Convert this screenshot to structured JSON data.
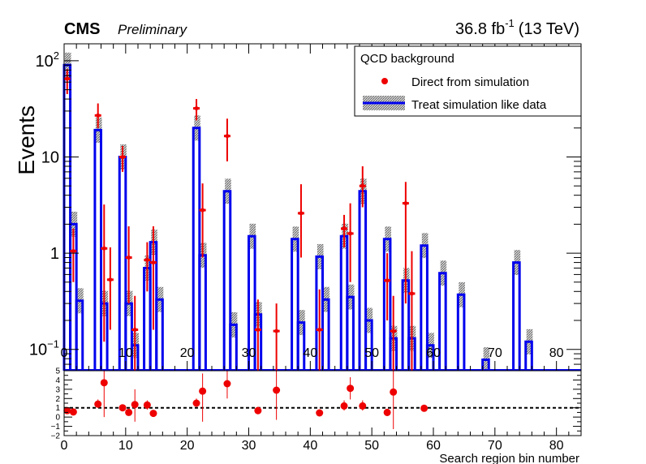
{
  "header": {
    "experiment": "CMS",
    "status": "Preliminary",
    "luminosity": "36.8 fb",
    "lumi_exponent": "-1",
    "energy": "(13 TeV)"
  },
  "legend": {
    "title": "QCD background",
    "entry_points": "Direct from simulation",
    "entry_hist": "Treat simulation like data"
  },
  "colors": {
    "histogram": "#0000ee",
    "points": "#ee0000",
    "band": "#808080"
  },
  "chart_data": [
    {
      "type": "bar",
      "panel": "main",
      "ylabel": "Events",
      "xlabel": "",
      "yscale": "log",
      "xlim": [
        0,
        84
      ],
      "ylim": [
        0.06,
        150
      ],
      "y_ticks": [
        {
          "value": 0.1,
          "label": "10",
          "exp": "−1"
        },
        {
          "value": 1,
          "label": "1",
          "exp": ""
        },
        {
          "value": 10,
          "label": "10",
          "exp": ""
        },
        {
          "value": 100,
          "label": "10",
          "exp": "2"
        }
      ],
      "x_ticks": [
        0,
        10,
        20,
        30,
        40,
        50,
        60,
        70,
        80
      ],
      "series": [
        {
          "name": "Treat simulation like data",
          "style": "step-histogram",
          "bins": [
            {
              "bin": 1,
              "y": 90
            },
            {
              "bin": 2,
              "y": 2.0
            },
            {
              "bin": 3,
              "y": 0.32
            },
            {
              "bin": 6,
              "y": 19
            },
            {
              "bin": 7,
              "y": 0.3
            },
            {
              "bin": 10,
              "y": 10
            },
            {
              "bin": 11,
              "y": 0.3
            },
            {
              "bin": 12,
              "y": 0.11
            },
            {
              "bin": 14,
              "y": 0.7
            },
            {
              "bin": 15,
              "y": 1.3
            },
            {
              "bin": 16,
              "y": 0.33
            },
            {
              "bin": 22,
              "y": 20
            },
            {
              "bin": 23,
              "y": 0.95
            },
            {
              "bin": 27,
              "y": 4.4
            },
            {
              "bin": 28,
              "y": 0.18
            },
            {
              "bin": 31,
              "y": 1.5
            },
            {
              "bin": 32,
              "y": 0.23
            },
            {
              "bin": 38,
              "y": 1.4
            },
            {
              "bin": 39,
              "y": 0.19
            },
            {
              "bin": 42,
              "y": 0.92
            },
            {
              "bin": 43,
              "y": 0.33
            },
            {
              "bin": 46,
              "y": 1.5
            },
            {
              "bin": 47,
              "y": 0.35
            },
            {
              "bin": 49,
              "y": 4.4
            },
            {
              "bin": 50,
              "y": 0.2
            },
            {
              "bin": 53,
              "y": 1.4
            },
            {
              "bin": 54,
              "y": 0.13
            },
            {
              "bin": 56,
              "y": 0.52
            },
            {
              "bin": 57,
              "y": 0.13
            },
            {
              "bin": 59,
              "y": 1.2
            },
            {
              "bin": 60,
              "y": 0.11
            },
            {
              "bin": 62,
              "y": 0.62
            },
            {
              "bin": 65,
              "y": 0.37
            },
            {
              "bin": 69,
              "y": 0.078
            },
            {
              "bin": 74,
              "y": 0.8
            },
            {
              "bin": 76,
              "y": 0.12
            }
          ]
        },
        {
          "name": "Direct from simulation",
          "style": "points-with-errors",
          "points": [
            {
              "x": 0.5,
              "y": 65,
              "lo": 45,
              "hi": 82
            },
            {
              "x": 1.5,
              "y": 1.05,
              "lo": 0.5,
              "hi": 1.8
            },
            {
              "x": 5.5,
              "y": 27,
              "lo": 20,
              "hi": 36
            },
            {
              "x": 6.5,
              "y": 1.12,
              "lo": 0.12,
              "hi": 3.2
            },
            {
              "x": 7.5,
              "y": 0.53,
              "lo": 0.16,
              "hi": 1.15
            },
            {
              "x": 9.5,
              "y": 10,
              "lo": 7,
              "hi": 13
            },
            {
              "x": 10.5,
              "y": 0.9,
              "lo": 0.3,
              "hi": 1.9
            },
            {
              "x": 11.5,
              "y": 0.16,
              "lo": 0.06,
              "hi": 0.36
            },
            {
              "x": 13.5,
              "y": 0.85,
              "lo": 0.4,
              "hi": 1.3
            },
            {
              "x": 14.5,
              "y": 0.8,
              "lo": 0.16,
              "hi": 1.9
            },
            {
              "x": 21.5,
              "y": 32,
              "lo": 24,
              "hi": 40
            },
            {
              "x": 22.5,
              "y": 2.8,
              "lo": 0.9,
              "hi": 5.3
            },
            {
              "x": 26.5,
              "y": 16.5,
              "lo": 9,
              "hi": 25
            },
            {
              "x": 31.5,
              "y": 0.16,
              "lo": 0.06,
              "hi": 0.33
            },
            {
              "x": 34.5,
              "y": 0.155,
              "lo": 0.06,
              "hi": 0.3
            },
            {
              "x": 38.5,
              "y": 2.6,
              "lo": 0.9,
              "hi": 5.2
            },
            {
              "x": 41.5,
              "y": 0.16,
              "lo": 0.06,
              "hi": 0.42
            },
            {
              "x": 45.5,
              "y": 1.8,
              "lo": 1.15,
              "hi": 2.5
            },
            {
              "x": 46.5,
              "y": 1.6,
              "lo": 0.5,
              "hi": 3.3
            },
            {
              "x": 48.5,
              "y": 5.0,
              "lo": 3.0,
              "hi": 8.0
            },
            {
              "x": 52.5,
              "y": 0.52,
              "lo": 0.2,
              "hi": 1.0
            },
            {
              "x": 53.5,
              "y": 0.155,
              "lo": 0.06,
              "hi": 0.36
            },
            {
              "x": 55.5,
              "y": 3.3,
              "lo": 0.3,
              "hi": 5.5
            },
            {
              "x": 56.5,
              "y": 0.38,
              "lo": 0.06,
              "hi": 1.05
            }
          ]
        }
      ]
    },
    {
      "type": "scatter",
      "panel": "ratio",
      "xlabel": "Search region bin number",
      "ylabel": "",
      "xlim": [
        0,
        84
      ],
      "ylim": [
        -2,
        5
      ],
      "y_ticks": [
        -2,
        -1,
        0,
        1,
        2,
        3,
        4,
        5
      ],
      "x_ticks": [
        0,
        10,
        20,
        30,
        40,
        50,
        60,
        70,
        80
      ],
      "reference_line": 1,
      "points": [
        {
          "x": 0.5,
          "y": 0.7,
          "lo": 0.5,
          "hi": 0.9
        },
        {
          "x": 1.5,
          "y": 0.55,
          "lo": 0.3,
          "hi": 0.8
        },
        {
          "x": 5.5,
          "y": 1.4,
          "lo": 1.0,
          "hi": 1.9
        },
        {
          "x": 6.5,
          "y": 3.7,
          "lo": 0.0,
          "hi": 5.0
        },
        {
          "x": 9.5,
          "y": 1.0,
          "lo": 0.7,
          "hi": 1.3
        },
        {
          "x": 10.5,
          "y": 0.5,
          "lo": 0.2,
          "hi": 0.8
        },
        {
          "x": 11.5,
          "y": 1.35,
          "lo": -0.5,
          "hi": 3.0
        },
        {
          "x": 13.5,
          "y": 1.3,
          "lo": 0.8,
          "hi": 1.8
        },
        {
          "x": 14.5,
          "y": 0.4,
          "lo": 0.2,
          "hi": 0.6
        },
        {
          "x": 21.5,
          "y": 1.5,
          "lo": 1.1,
          "hi": 2.0
        },
        {
          "x": 22.5,
          "y": 2.8,
          "lo": -0.5,
          "hi": 4.7
        },
        {
          "x": 26.5,
          "y": 3.6,
          "lo": 2.0,
          "hi": 5.0
        },
        {
          "x": 31.5,
          "y": 0.7,
          "lo": 0.3,
          "hi": 1.1
        },
        {
          "x": 34.5,
          "y": 2.9,
          "lo": -0.3,
          "hi": 5.0
        },
        {
          "x": 41.5,
          "y": 0.45,
          "lo": 0.2,
          "hi": 0.7
        },
        {
          "x": 45.5,
          "y": 1.2,
          "lo": 0.7,
          "hi": 1.8
        },
        {
          "x": 46.5,
          "y": 3.1,
          "lo": 1.9,
          "hi": 4.3
        },
        {
          "x": 48.5,
          "y": 1.2,
          "lo": 0.7,
          "hi": 1.8
        },
        {
          "x": 52.5,
          "y": 0.5,
          "lo": 0.1,
          "hi": 0.9
        },
        {
          "x": 53.5,
          "y": 2.7,
          "lo": -1.3,
          "hi": 5.0
        },
        {
          "x": 58.5,
          "y": 0.95,
          "lo": 0.6,
          "hi": 1.3
        }
      ]
    }
  ]
}
